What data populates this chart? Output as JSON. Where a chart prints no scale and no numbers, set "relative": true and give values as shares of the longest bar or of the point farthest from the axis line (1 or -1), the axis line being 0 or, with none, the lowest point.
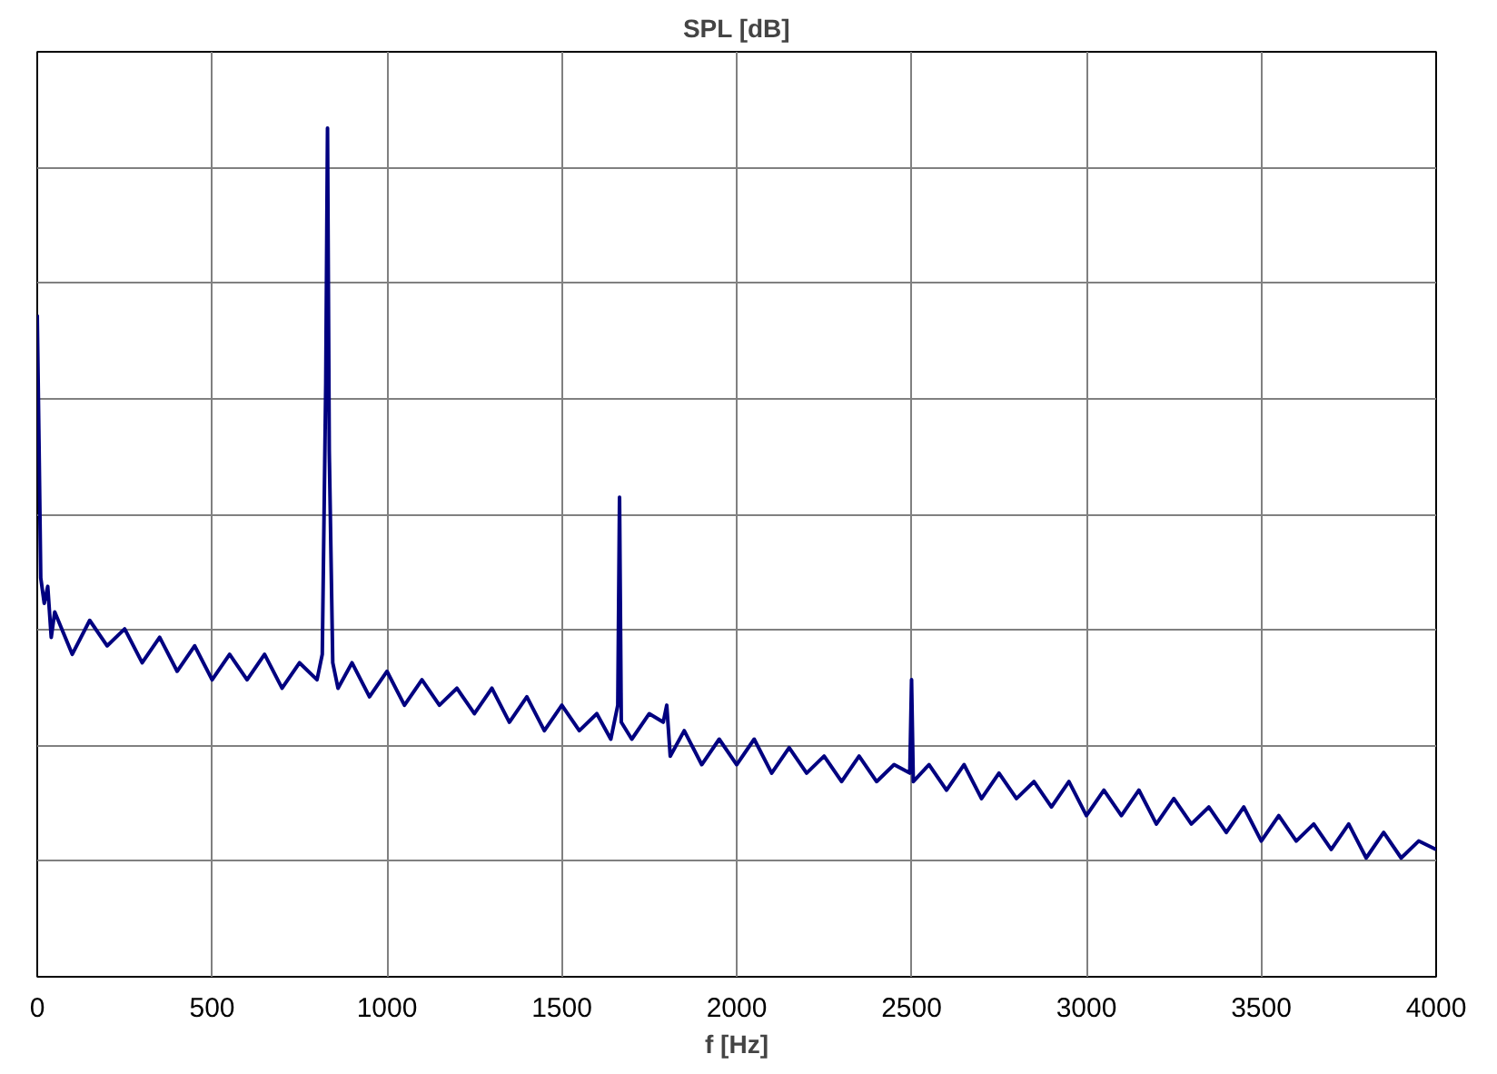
{
  "chart_data": {
    "type": "line",
    "relative": true,
    "xlabel": "f [Hz]",
    "ylabel": "SPL [dB]",
    "xlim": [
      0,
      4000
    ],
    "xticks": [
      0,
      500,
      1000,
      1500,
      2000,
      2500,
      3000,
      3500,
      4000
    ],
    "grid": true,
    "tick_labels": "x",
    "series": [
      {
        "color": "#000080",
        "x": [
          0,
          5,
          10,
          20,
          30,
          40,
          50,
          100,
          150,
          200,
          250,
          300,
          350,
          400,
          450,
          500,
          550,
          600,
          650,
          700,
          750,
          800,
          815,
          825,
          830,
          835,
          845,
          860,
          900,
          950,
          1000,
          1050,
          1100,
          1150,
          1200,
          1250,
          1300,
          1350,
          1400,
          1450,
          1500,
          1550,
          1600,
          1640,
          1660,
          1665,
          1670,
          1700,
          1750,
          1790,
          1800,
          1810,
          1850,
          1900,
          1950,
          2000,
          2050,
          2100,
          2150,
          2200,
          2250,
          2300,
          2350,
          2400,
          2450,
          2495,
          2500,
          2505,
          2550,
          2600,
          2650,
          2700,
          2750,
          2800,
          2850,
          2900,
          2950,
          3000,
          3050,
          3100,
          3150,
          3200,
          3250,
          3300,
          3350,
          3400,
          3450,
          3500,
          3550,
          3600,
          3650,
          3700,
          3750,
          3800,
          3850,
          3900,
          3950,
          4000
        ],
        "values": [
          0.78,
          0.63,
          0.47,
          0.44,
          0.46,
          0.4,
          0.43,
          0.38,
          0.42,
          0.39,
          0.41,
          0.37,
          0.4,
          0.36,
          0.39,
          0.35,
          0.38,
          0.35,
          0.38,
          0.34,
          0.37,
          0.35,
          0.38,
          0.7,
          1.0,
          0.62,
          0.37,
          0.34,
          0.37,
          0.33,
          0.36,
          0.32,
          0.35,
          0.32,
          0.34,
          0.31,
          0.34,
          0.3,
          0.33,
          0.29,
          0.32,
          0.29,
          0.31,
          0.28,
          0.32,
          0.565,
          0.3,
          0.28,
          0.31,
          0.3,
          0.32,
          0.26,
          0.29,
          0.25,
          0.28,
          0.25,
          0.28,
          0.24,
          0.27,
          0.24,
          0.26,
          0.23,
          0.26,
          0.23,
          0.25,
          0.24,
          0.35,
          0.23,
          0.25,
          0.22,
          0.25,
          0.21,
          0.24,
          0.21,
          0.23,
          0.2,
          0.23,
          0.19,
          0.22,
          0.19,
          0.22,
          0.18,
          0.21,
          0.18,
          0.2,
          0.17,
          0.2,
          0.16,
          0.19,
          0.16,
          0.18,
          0.15,
          0.18,
          0.14,
          0.17,
          0.14,
          0.16,
          0.15
        ]
      }
    ]
  }
}
